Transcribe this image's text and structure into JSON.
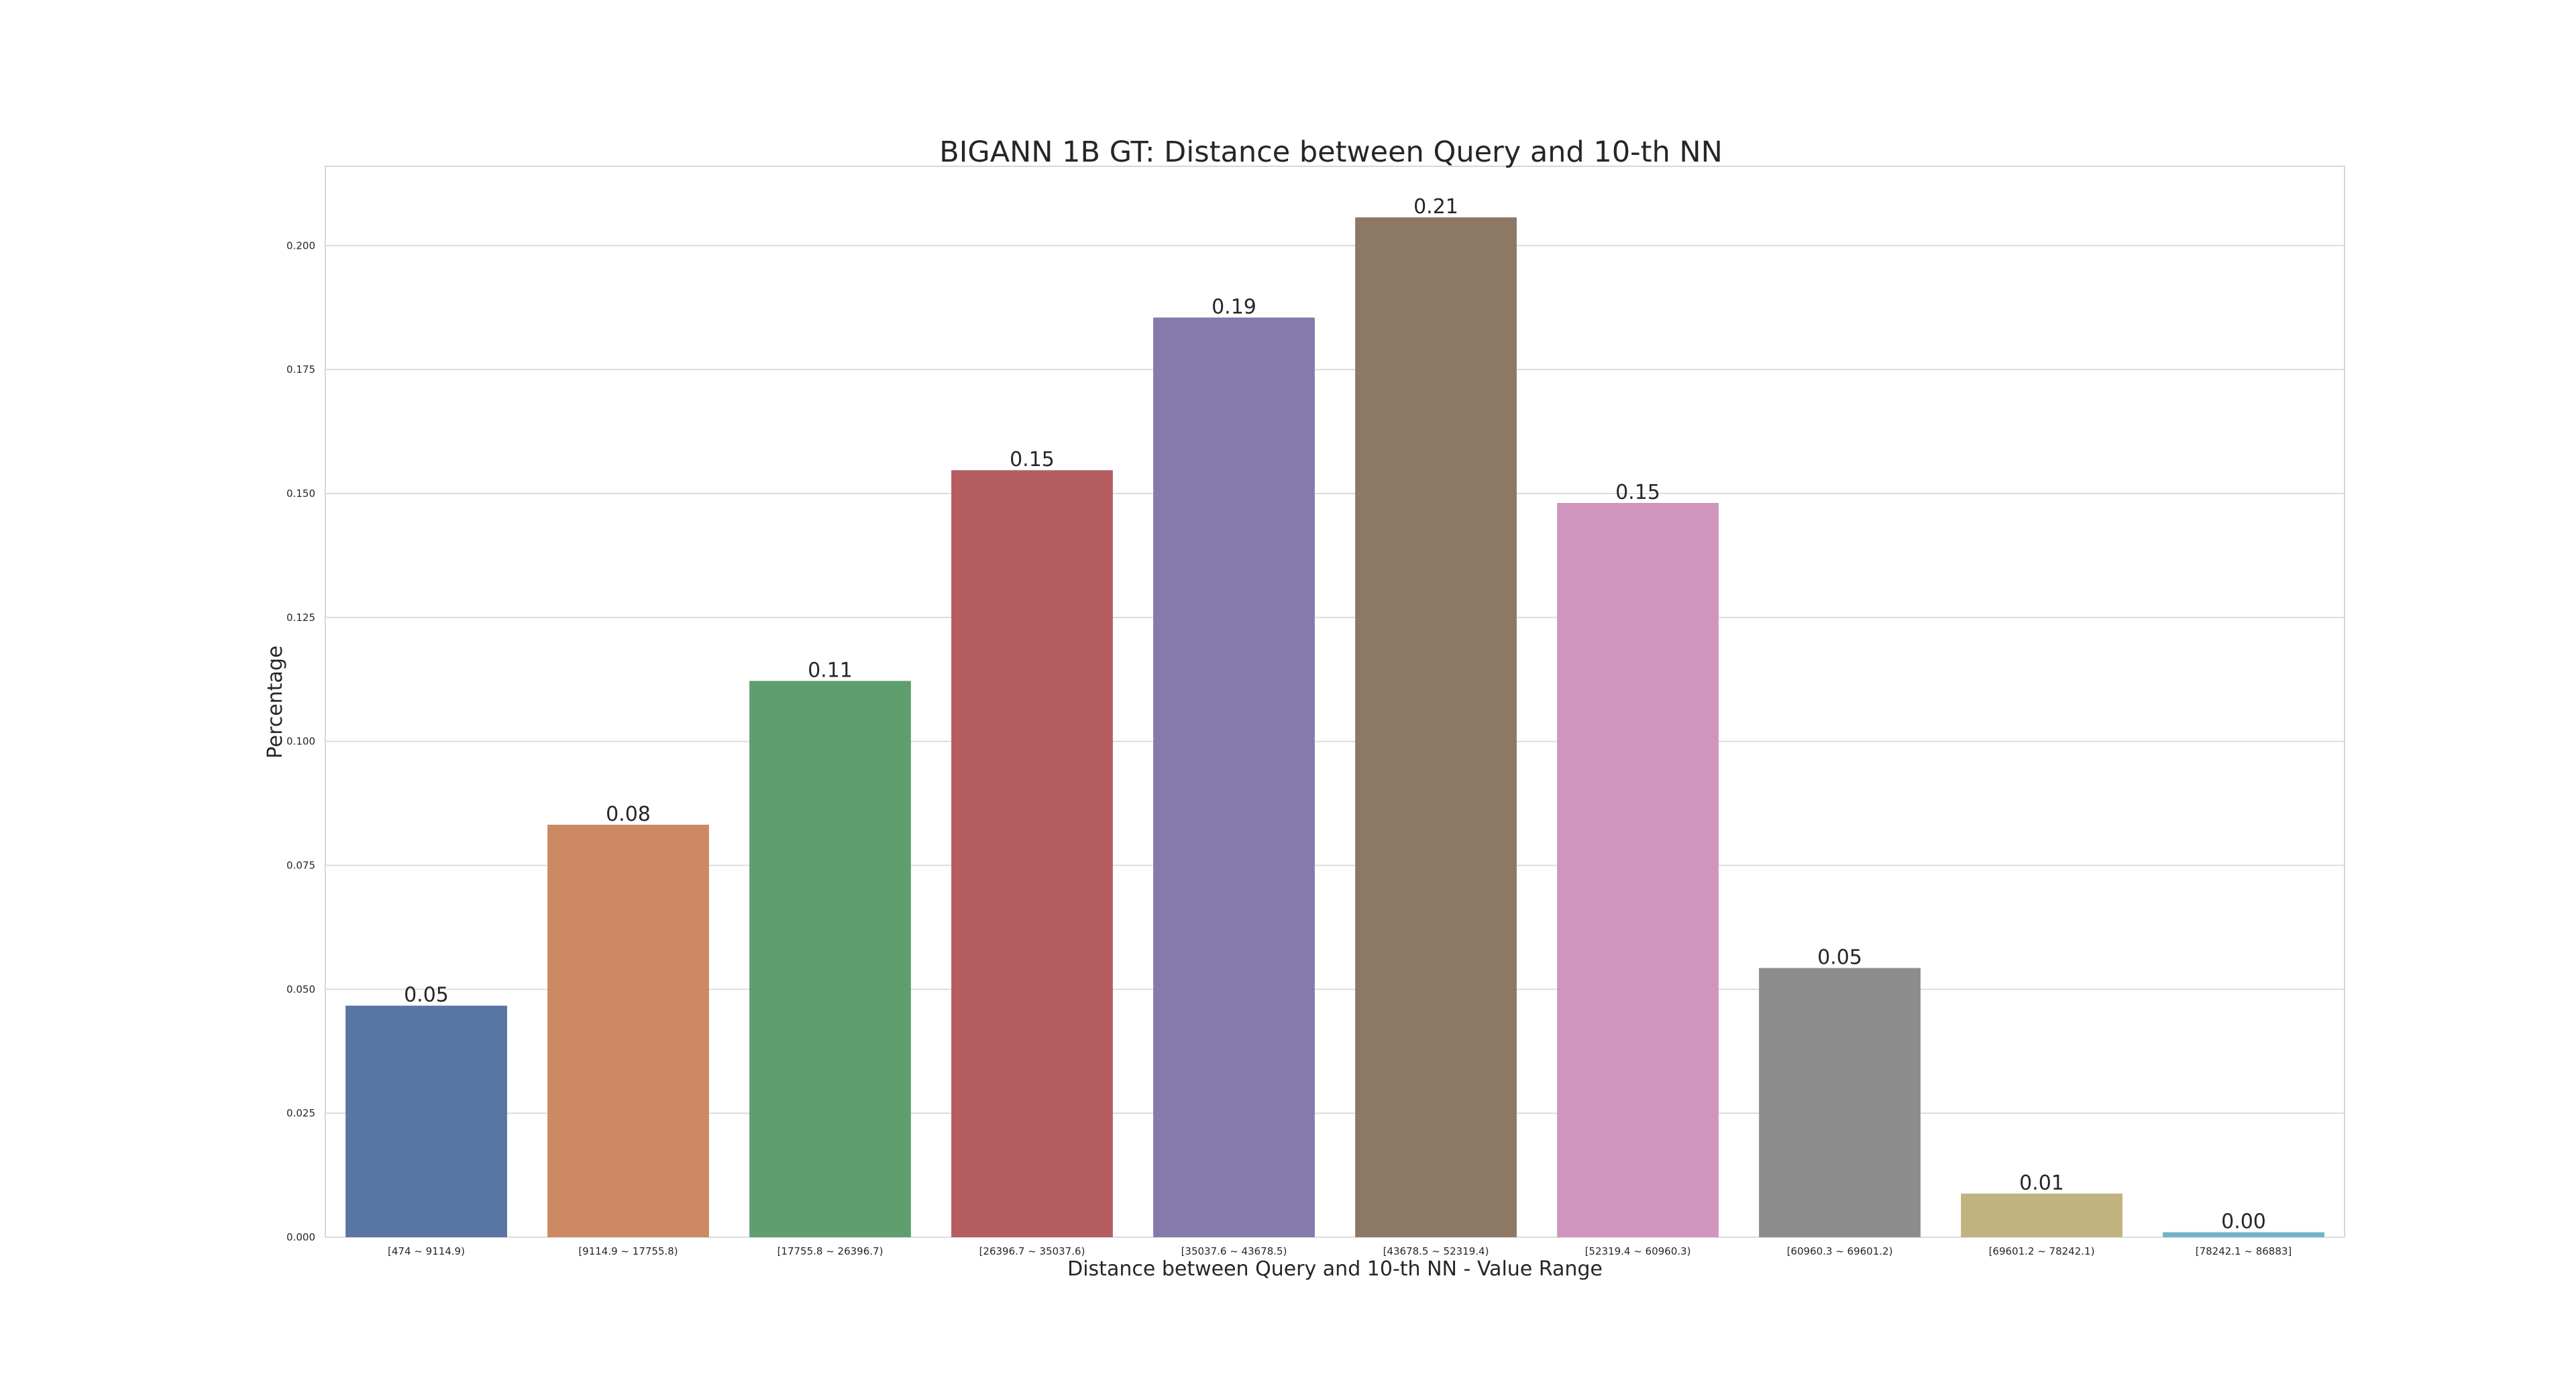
{
  "chart_data": {
    "type": "bar",
    "title": "BIGANN 1B GT: Distance between Query and 10-th NN",
    "xlabel": "Distance between Query and 10-th NN - Value Range",
    "ylabel": "Percentage",
    "ylim": [
      0,
      0.216
    ],
    "yticks": [
      "0.000",
      "0.025",
      "0.050",
      "0.075",
      "0.100",
      "0.125",
      "0.150",
      "0.175",
      "0.200"
    ],
    "grid": true,
    "categories": [
      "[474 ~ 9114.9)",
      "[9114.9 ~ 17755.8)",
      "[17755.8 ~ 26396.7)",
      "[26396.7 ~ 35037.6)",
      "[35037.6 ~ 43678.5)",
      "[43678.5 ~ 52319.4)",
      "[52319.4 ~ 60960.3)",
      "[60960.3 ~ 69601.2)",
      "[69601.2 ~ 78242.1)",
      "[78242.1 ~ 86883]"
    ],
    "values": [
      0.0467,
      0.0832,
      0.1122,
      0.1547,
      0.1855,
      0.2057,
      0.1481,
      0.0543,
      0.0088,
      0.001
    ],
    "data_labels": [
      "0.05",
      "0.08",
      "0.11",
      "0.15",
      "0.19",
      "0.21",
      "0.15",
      "0.05",
      "0.01",
      "0.00"
    ],
    "colors": [
      "#5975a4",
      "#cc8963",
      "#5f9e6e",
      "#b55d60",
      "#857aab",
      "#8d7866",
      "#d095bf",
      "#8c8c8c",
      "#c1b37f",
      "#6fb3c8"
    ]
  }
}
